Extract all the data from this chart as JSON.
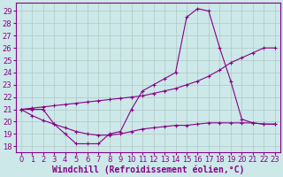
{
  "background_color": "#cce8e8",
  "grid_color": "#b0c8c8",
  "line_color": "#880088",
  "marker": "+",
  "xlabel": "Windchill (Refroidissement éolien,°C)",
  "xlabel_fontsize": 7.0,
  "tick_fontsize": 6.0,
  "xlim": [
    -0.5,
    23.5
  ],
  "ylim": [
    17.5,
    29.7
  ],
  "yticks": [
    18,
    19,
    20,
    21,
    22,
    23,
    24,
    25,
    26,
    27,
    28,
    29
  ],
  "xticks": [
    0,
    1,
    2,
    3,
    4,
    5,
    6,
    7,
    8,
    9,
    10,
    11,
    12,
    13,
    14,
    15,
    16,
    17,
    18,
    19,
    20,
    21,
    22,
    23
  ],
  "line1_x": [
    0,
    1,
    2,
    3,
    4,
    5,
    6,
    7,
    8,
    9,
    10,
    11,
    12,
    13,
    14,
    15,
    16,
    17,
    18,
    19,
    20,
    21,
    22,
    23
  ],
  "line1_y": [
    21,
    21,
    21,
    19.8,
    19,
    18.2,
    18.2,
    18.2,
    19.0,
    19.2,
    21.0,
    22.5,
    23.0,
    23.5,
    24.0,
    28.5,
    29.2,
    29.0,
    26.0,
    23.3,
    20.2,
    19.9,
    19.8,
    19.8
  ],
  "line2_x": [
    0,
    1,
    2,
    3,
    4,
    5,
    6,
    7,
    8,
    9,
    10,
    11,
    12,
    13,
    14,
    15,
    16,
    17,
    18,
    19,
    20,
    21,
    22,
    23
  ],
  "line2_y": [
    21.0,
    21.1,
    21.2,
    21.3,
    21.4,
    21.5,
    21.6,
    21.7,
    21.8,
    21.9,
    22.0,
    22.1,
    22.3,
    22.5,
    22.7,
    23.0,
    23.3,
    23.7,
    24.2,
    24.8,
    25.2,
    25.6,
    26.0,
    26.0
  ],
  "line3_x": [
    0,
    1,
    2,
    3,
    4,
    5,
    6,
    7,
    8,
    9,
    10,
    11,
    12,
    13,
    14,
    15,
    16,
    17,
    18,
    19,
    20,
    21,
    22,
    23
  ],
  "line3_y": [
    21.0,
    20.5,
    20.1,
    19.8,
    19.5,
    19.2,
    19.0,
    18.9,
    18.9,
    19.0,
    19.2,
    19.4,
    19.5,
    19.6,
    19.7,
    19.7,
    19.8,
    19.9,
    19.9,
    19.9,
    19.9,
    19.9,
    19.8,
    19.8
  ]
}
